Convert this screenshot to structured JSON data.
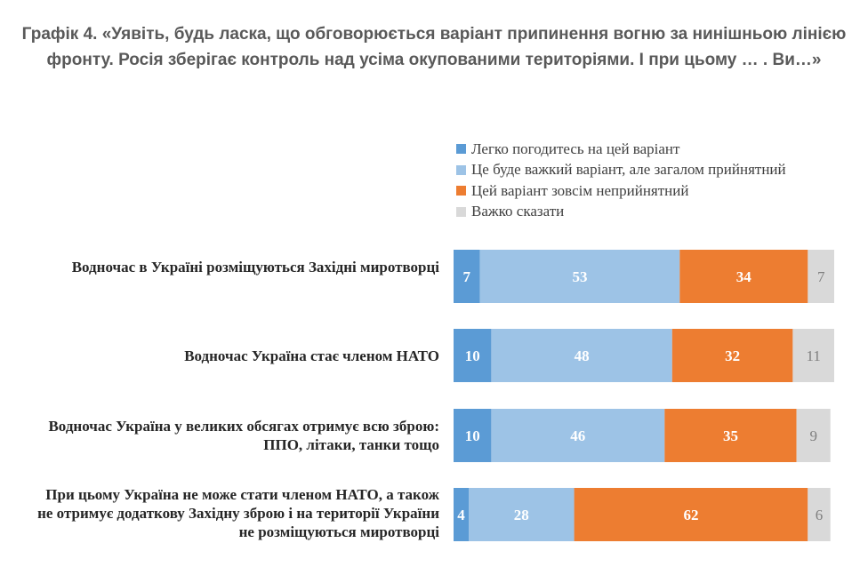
{
  "title": "Графік 4. «Уявіть, будь ласка, що обговорюється варіант припинення вогню за нинішньою лінією фронту. Росія зберігає контроль над усіма окупованими територіями. І при цьому … . Ви…»",
  "legend": [
    {
      "label": "Легко погодитесь на цей варіант",
      "color": "#5b9bd5"
    },
    {
      "label": "Це буде важкий варіант, але загалом прийнятний",
      "color": "#9dc3e6"
    },
    {
      "label": "Цей варіант зовсім неприйнятний",
      "color": "#ed7d31"
    },
    {
      "label": "Важко сказати",
      "color": "#d9d9d9"
    }
  ],
  "chart_data": {
    "type": "bar",
    "orientation": "horizontal",
    "stacked": true,
    "categories": [
      "Водночас в Україні розміщуються Західні миротворці",
      "Водночас Україна стає членом НАТО",
      "Водночас Україна у великих обсягах отримує всю зброю: ППО, літаки, танки тощо",
      "При цьому Україна не може стати членом НАТО, а також не отримує додаткову Західну зброю і на території України не розміщуються миротворці"
    ],
    "series": [
      {
        "name": "Легко погодитесь на цей варіант",
        "values": [
          7,
          10,
          10,
          4
        ],
        "color": "#5b9bd5",
        "label_color": "#ffffff"
      },
      {
        "name": "Це буде важкий варіант, але загалом прийнятний",
        "values": [
          53,
          48,
          46,
          28
        ],
        "color": "#9dc3e6",
        "label_color": "#ffffff"
      },
      {
        "name": "Цей варіант зовсім неприйнятний",
        "values": [
          34,
          32,
          35,
          62
        ],
        "color": "#ed7d31",
        "label_color": "#ffffff"
      },
      {
        "name": "Важко сказати",
        "values": [
          7,
          11,
          9,
          6
        ],
        "color": "#d9d9d9",
        "label_color": "#7f7f7f"
      }
    ],
    "xlim": [
      0,
      101
    ],
    "legend_position": "top",
    "grid": false
  }
}
